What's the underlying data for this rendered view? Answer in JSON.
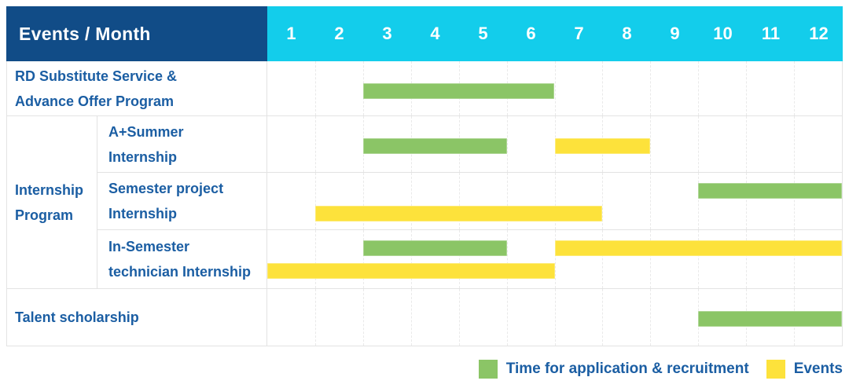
{
  "header": {
    "label": "Events / Month"
  },
  "colors": {
    "header_navy": "#114C87",
    "months_cyan": "#13CDEB",
    "label_blue": "#1B5EA3",
    "recruitment_green": "#8BC566",
    "event_yellow": "#FDE23B",
    "grid_line": "#E9E9E9",
    "border_gray": "#E3E3E3"
  },
  "chart_data": {
    "type": "gantt",
    "title": "Events / Month",
    "x_unit": "month",
    "x_range": [
      1,
      12
    ],
    "months": [
      "1",
      "2",
      "3",
      "4",
      "5",
      "6",
      "7",
      "8",
      "9",
      "10",
      "11",
      "12"
    ],
    "grid": true,
    "bar_kinds": {
      "recruitment": {
        "label": "Time for application & recruitment",
        "color": "#8BC566"
      },
      "event": {
        "label": "Events",
        "color": "#FDE23B"
      }
    },
    "groups": [
      {
        "id": "internship-program",
        "label_lines": [
          "Internship",
          "Program"
        ],
        "first_row": 1,
        "last_row": 3
      }
    ],
    "rows": [
      {
        "id": "rd-substitute-advance-offer",
        "label_lines": [
          "RD Substitute Service &",
          "Advance Offer Program"
        ],
        "in_group": false,
        "bars": [
          {
            "kind": "recruitment",
            "start_month": 3,
            "end_month": 6,
            "lane": 0
          }
        ]
      },
      {
        "id": "a-plus-summer-internship",
        "label_lines": [
          "A+Summer",
          "Internship"
        ],
        "in_group": true,
        "bars": [
          {
            "kind": "recruitment",
            "start_month": 3,
            "end_month": 5,
            "lane": 0
          },
          {
            "kind": "event",
            "start_month": 7,
            "end_month": 8,
            "lane": 0
          }
        ]
      },
      {
        "id": "semester-project-internship",
        "label_lines": [
          "Semester project",
          "Internship"
        ],
        "in_group": true,
        "bars": [
          {
            "kind": "recruitment",
            "start_month": 10,
            "end_month": 12,
            "lane": 0
          },
          {
            "kind": "event",
            "start_month": 2,
            "end_month": 7,
            "lane": 1
          }
        ]
      },
      {
        "id": "in-semester-technician-internship",
        "label_lines": [
          "In-Semester",
          "technician Internship"
        ],
        "in_group": true,
        "bars": [
          {
            "kind": "recruitment",
            "start_month": 3,
            "end_month": 5,
            "lane": 0
          },
          {
            "kind": "event",
            "start_month": 7,
            "end_month": 12,
            "lane": 0
          },
          {
            "kind": "event",
            "start_month": 1,
            "end_month": 6,
            "lane": 1
          }
        ]
      },
      {
        "id": "talent-scholarship",
        "label_lines": [
          "Talent scholarship"
        ],
        "in_group": false,
        "bars": [
          {
            "kind": "recruitment",
            "start_month": 10,
            "end_month": 12,
            "lane": 0
          }
        ]
      }
    ],
    "legend": [
      {
        "kind": "recruitment",
        "label": "Time for application & recruitment"
      },
      {
        "kind": "event",
        "label": "Events"
      }
    ],
    "legend_position": "bottom-right"
  }
}
